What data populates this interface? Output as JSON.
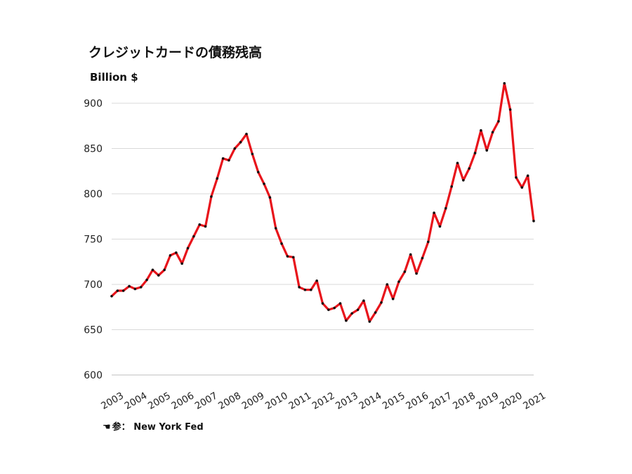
{
  "chart_data": {
    "type": "line",
    "title": "クレジットカードの債務残高",
    "ylabel": "Billion $",
    "xlabel": "",
    "ylim": [
      600,
      925
    ],
    "yticks": [
      600,
      650,
      700,
      750,
      800,
      850,
      900
    ],
    "xticks": [
      "2003",
      "2004",
      "2005",
      "2006",
      "2007",
      "2008",
      "2009",
      "2010",
      "2011",
      "2012",
      "2013",
      "2014",
      "2015",
      "2016",
      "2017",
      "2018",
      "2019",
      "2020",
      "2021"
    ],
    "grid": true,
    "series": [
      {
        "color": "#e8141b",
        "marker_color": "#111111",
        "x": [
          2003.0,
          2003.25,
          2003.5,
          2003.75,
          2004.0,
          2004.25,
          2004.5,
          2004.75,
          2005.0,
          2005.25,
          2005.5,
          2005.75,
          2006.0,
          2006.25,
          2006.5,
          2006.75,
          2007.0,
          2007.25,
          2007.5,
          2007.75,
          2008.0,
          2008.25,
          2008.5,
          2008.75,
          2009.0,
          2009.25,
          2009.5,
          2009.75,
          2010.0,
          2010.25,
          2010.5,
          2010.75,
          2011.0,
          2011.25,
          2011.5,
          2011.75,
          2012.0,
          2012.25,
          2012.5,
          2012.75,
          2013.0,
          2013.25,
          2013.5,
          2013.75,
          2014.0,
          2014.25,
          2014.5,
          2014.75,
          2015.0,
          2015.25,
          2015.5,
          2015.75,
          2016.0,
          2016.25,
          2016.5,
          2016.75,
          2017.0,
          2017.25,
          2017.5,
          2017.75,
          2018.0,
          2018.25,
          2018.5,
          2018.75,
          2019.0,
          2019.25,
          2019.5,
          2019.75,
          2020.0,
          2020.25,
          2020.5,
          2020.75,
          2021.0
        ],
        "y": [
          687,
          693,
          693,
          698,
          695,
          697,
          705,
          716,
          710,
          716,
          732,
          735,
          723,
          740,
          753,
          766,
          764,
          797,
          817,
          839,
          837,
          850,
          857,
          866,
          844,
          824,
          811,
          796,
          762,
          745,
          731,
          730,
          697,
          694,
          694,
          704,
          679,
          672,
          674,
          679,
          660,
          668,
          672,
          682,
          659,
          669,
          680,
          700,
          684,
          703,
          714,
          733,
          712,
          729,
          747,
          779,
          764,
          784,
          808,
          834,
          815,
          828,
          845,
          870,
          848,
          868,
          880,
          922,
          893,
          818,
          807,
          820,
          770
        ]
      }
    ]
  },
  "source": {
    "icon": "hand-icon",
    "label": "参：",
    "text": "New York Fed"
  }
}
